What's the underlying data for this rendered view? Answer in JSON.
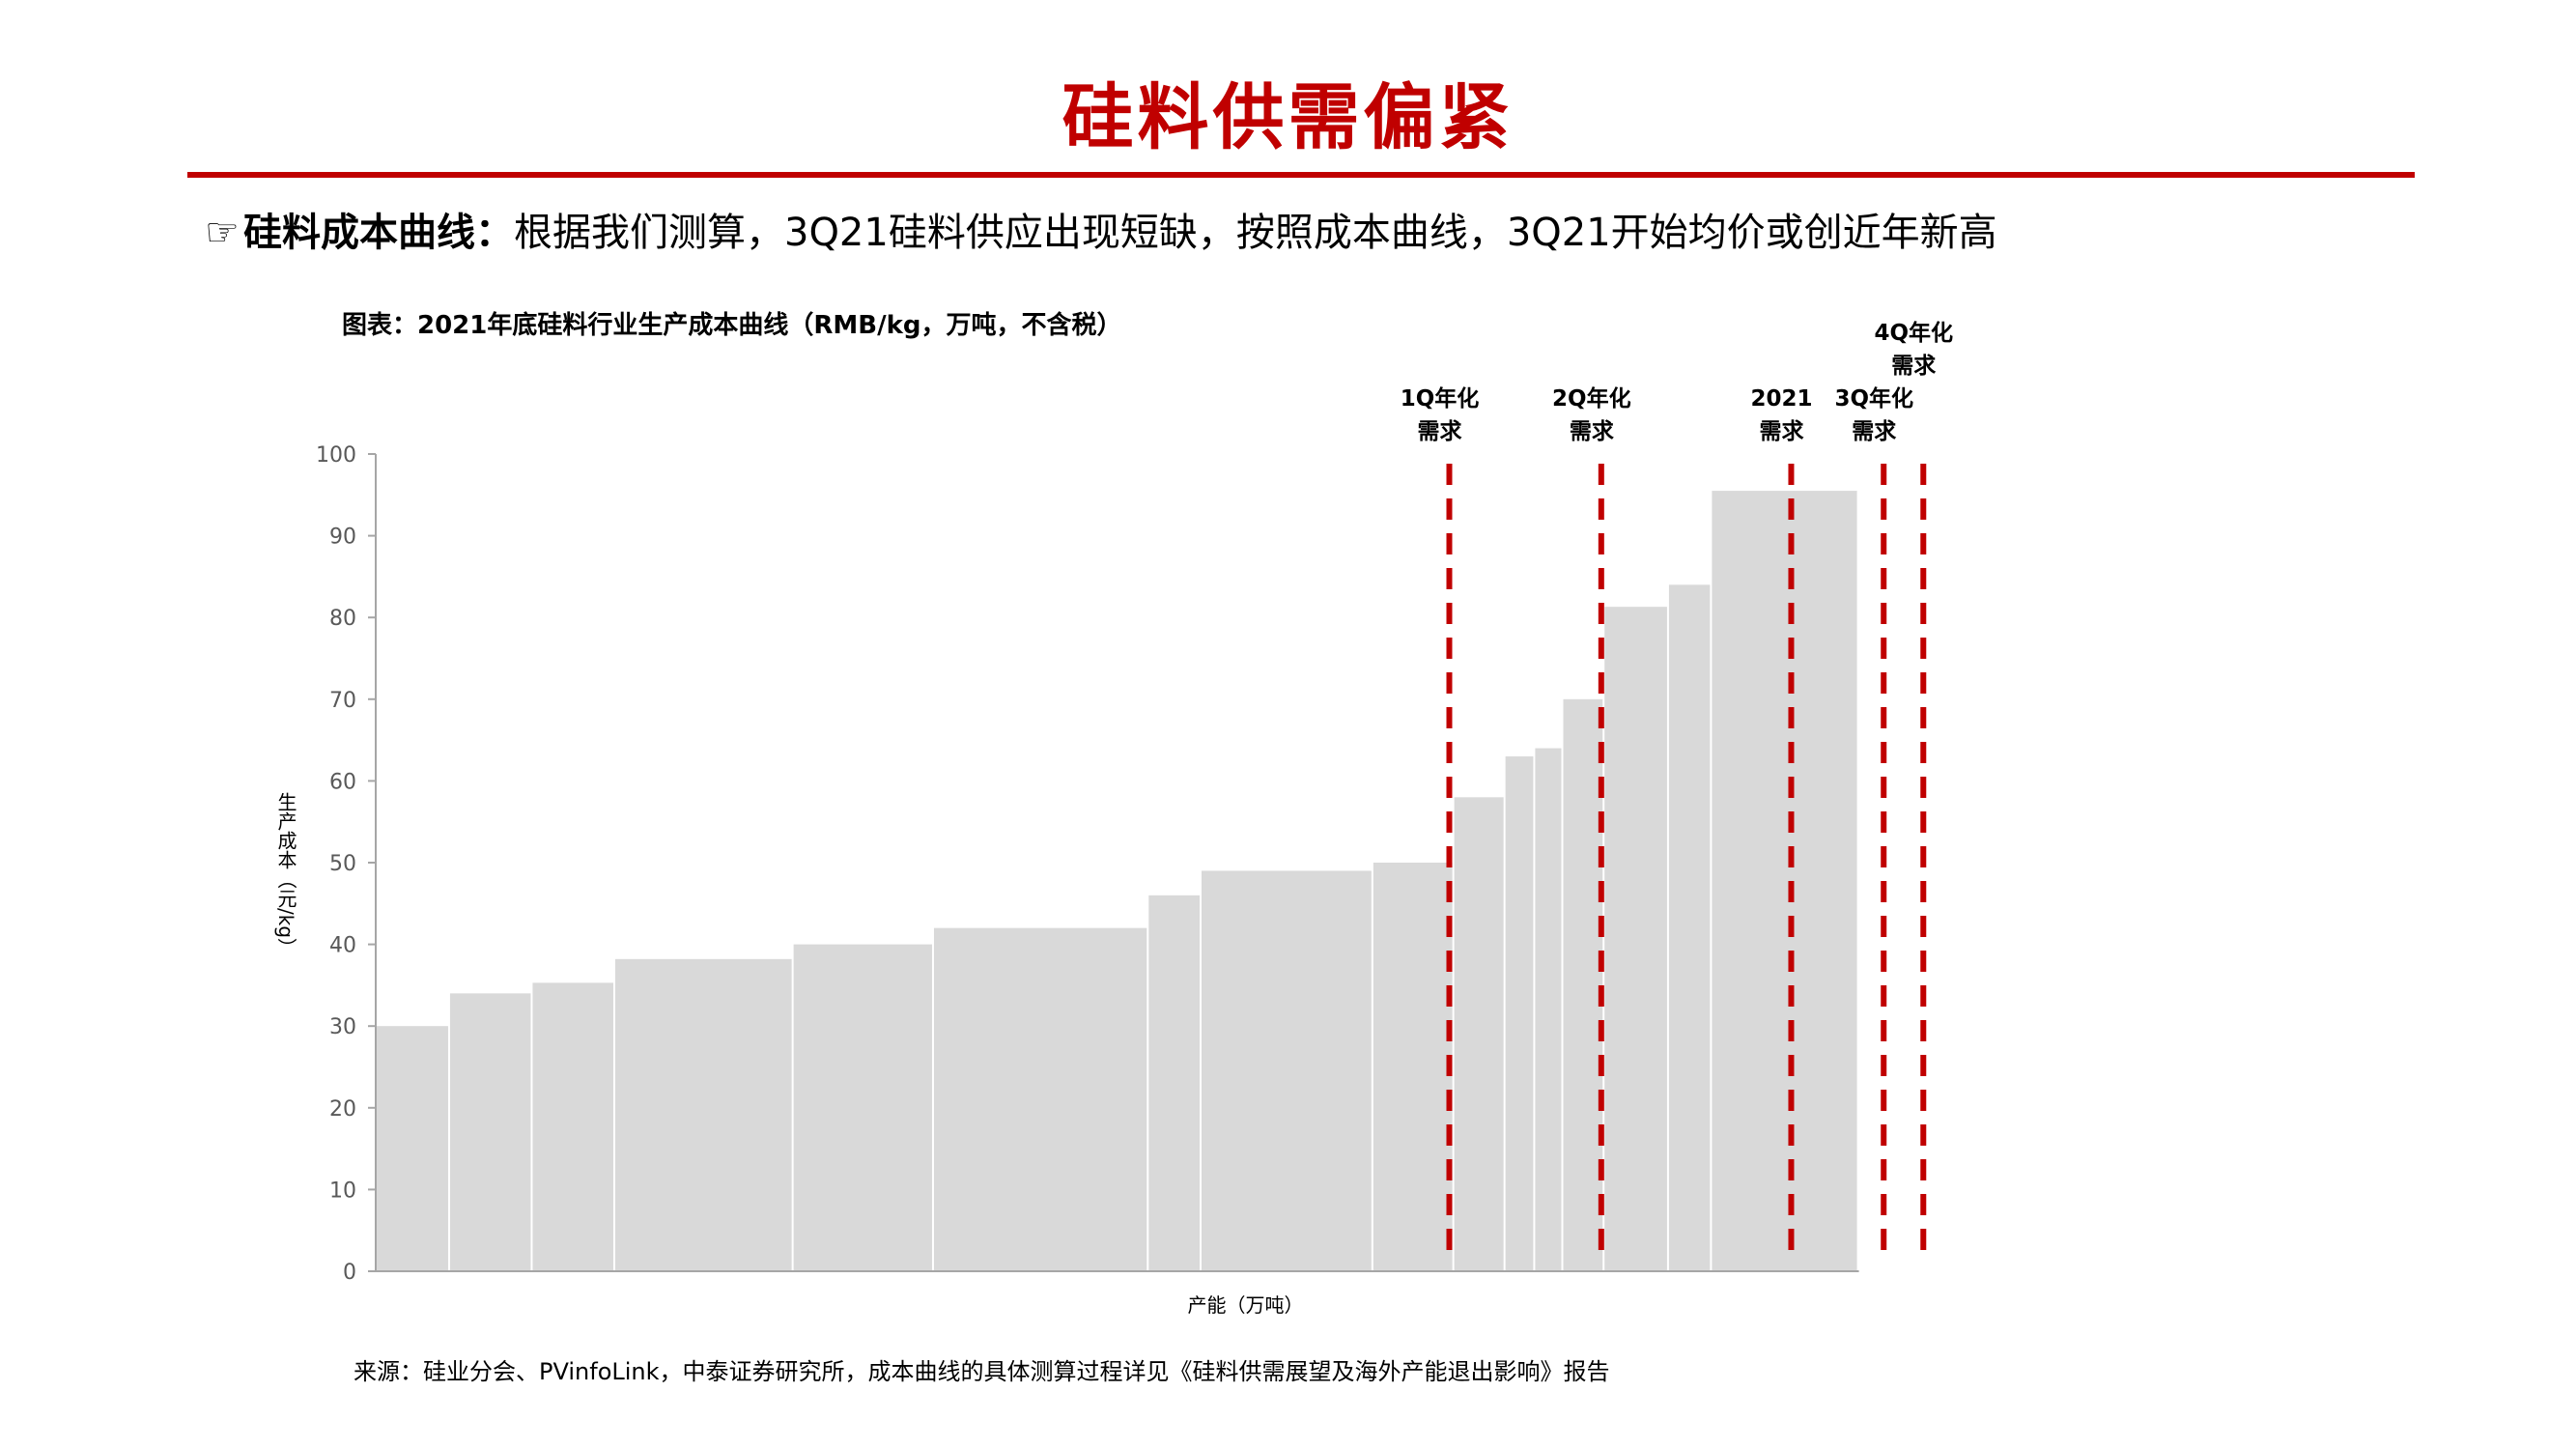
{
  "header": {
    "title": "硅料供需偏紧"
  },
  "bullet": {
    "icon": "pointing-hand-icon",
    "lead": "硅料成本曲线：",
    "text": "根据我们测算，3Q21硅料供应出现短缺，按照成本曲线，3Q21开始均价或创近年新高"
  },
  "chart_caption": "图表：2021年底硅料行业生产成本曲线（RMB/kg，万吨，不含税）",
  "source": "来源：硅业分会、PVinfoLink，中泰证券研究所，成本曲线的具体测算过程详见《硅料供需展望及海外产能退出影响》报告",
  "colors": {
    "accent": "#c00000",
    "bars": "#d9d9d9",
    "axis": "#a6a6a6"
  },
  "chart_data": {
    "type": "area",
    "subtype": "step-cost-curve",
    "xlabel": "产能（万吨）",
    "ylabel": "生产成本（元/kg）",
    "ylim": [
      0,
      100
    ],
    "yticks": [
      0,
      10,
      20,
      30,
      40,
      50,
      60,
      70,
      80,
      90,
      100
    ],
    "x_tick_labels_shown": false,
    "grid": false,
    "series": [
      {
        "values": [
          {
            "x_start": 0.0,
            "x_end": 4.5,
            "y": 30
          },
          {
            "x_start": 4.5,
            "x_end": 9.5,
            "y": 34
          },
          {
            "x_start": 9.5,
            "x_end": 14.5,
            "y": 35.3
          },
          {
            "x_start": 14.5,
            "x_end": 25.3,
            "y": 38.2
          },
          {
            "x_start": 25.3,
            "x_end": 33.8,
            "y": 40
          },
          {
            "x_start": 33.8,
            "x_end": 46.8,
            "y": 42
          },
          {
            "x_start": 46.8,
            "x_end": 50.0,
            "y": 46
          },
          {
            "x_start": 50.0,
            "x_end": 60.4,
            "y": 49
          },
          {
            "x_start": 60.4,
            "x_end": 65.3,
            "y": 50
          },
          {
            "x_start": 65.3,
            "x_end": 68.4,
            "y": 58
          },
          {
            "x_start": 68.4,
            "x_end": 70.2,
            "y": 63
          },
          {
            "x_start": 70.2,
            "x_end": 71.9,
            "y": 64
          },
          {
            "x_start": 71.9,
            "x_end": 74.4,
            "y": 70
          },
          {
            "x_start": 74.4,
            "x_end": 78.3,
            "y": 81.3
          },
          {
            "x_start": 78.3,
            "x_end": 80.9,
            "y": 84
          },
          {
            "x_start": 80.9,
            "x_end": 89.8,
            "y": 95.5
          }
        ]
      }
    ],
    "demand_lines": [
      {
        "label_line1": "1Q年化",
        "label_line2": "需求",
        "x": 65.0
      },
      {
        "label_line1": "2Q年化",
        "label_line2": "需求",
        "x": 74.2
      },
      {
        "label_line1": "2021",
        "label_line2": "需求",
        "x": 85.7
      },
      {
        "label_line1": "3Q年化",
        "label_line2": "需求",
        "x": 91.3
      },
      {
        "label_line1": "4Q年化",
        "label_line2": "需求",
        "x": 93.7
      }
    ]
  }
}
